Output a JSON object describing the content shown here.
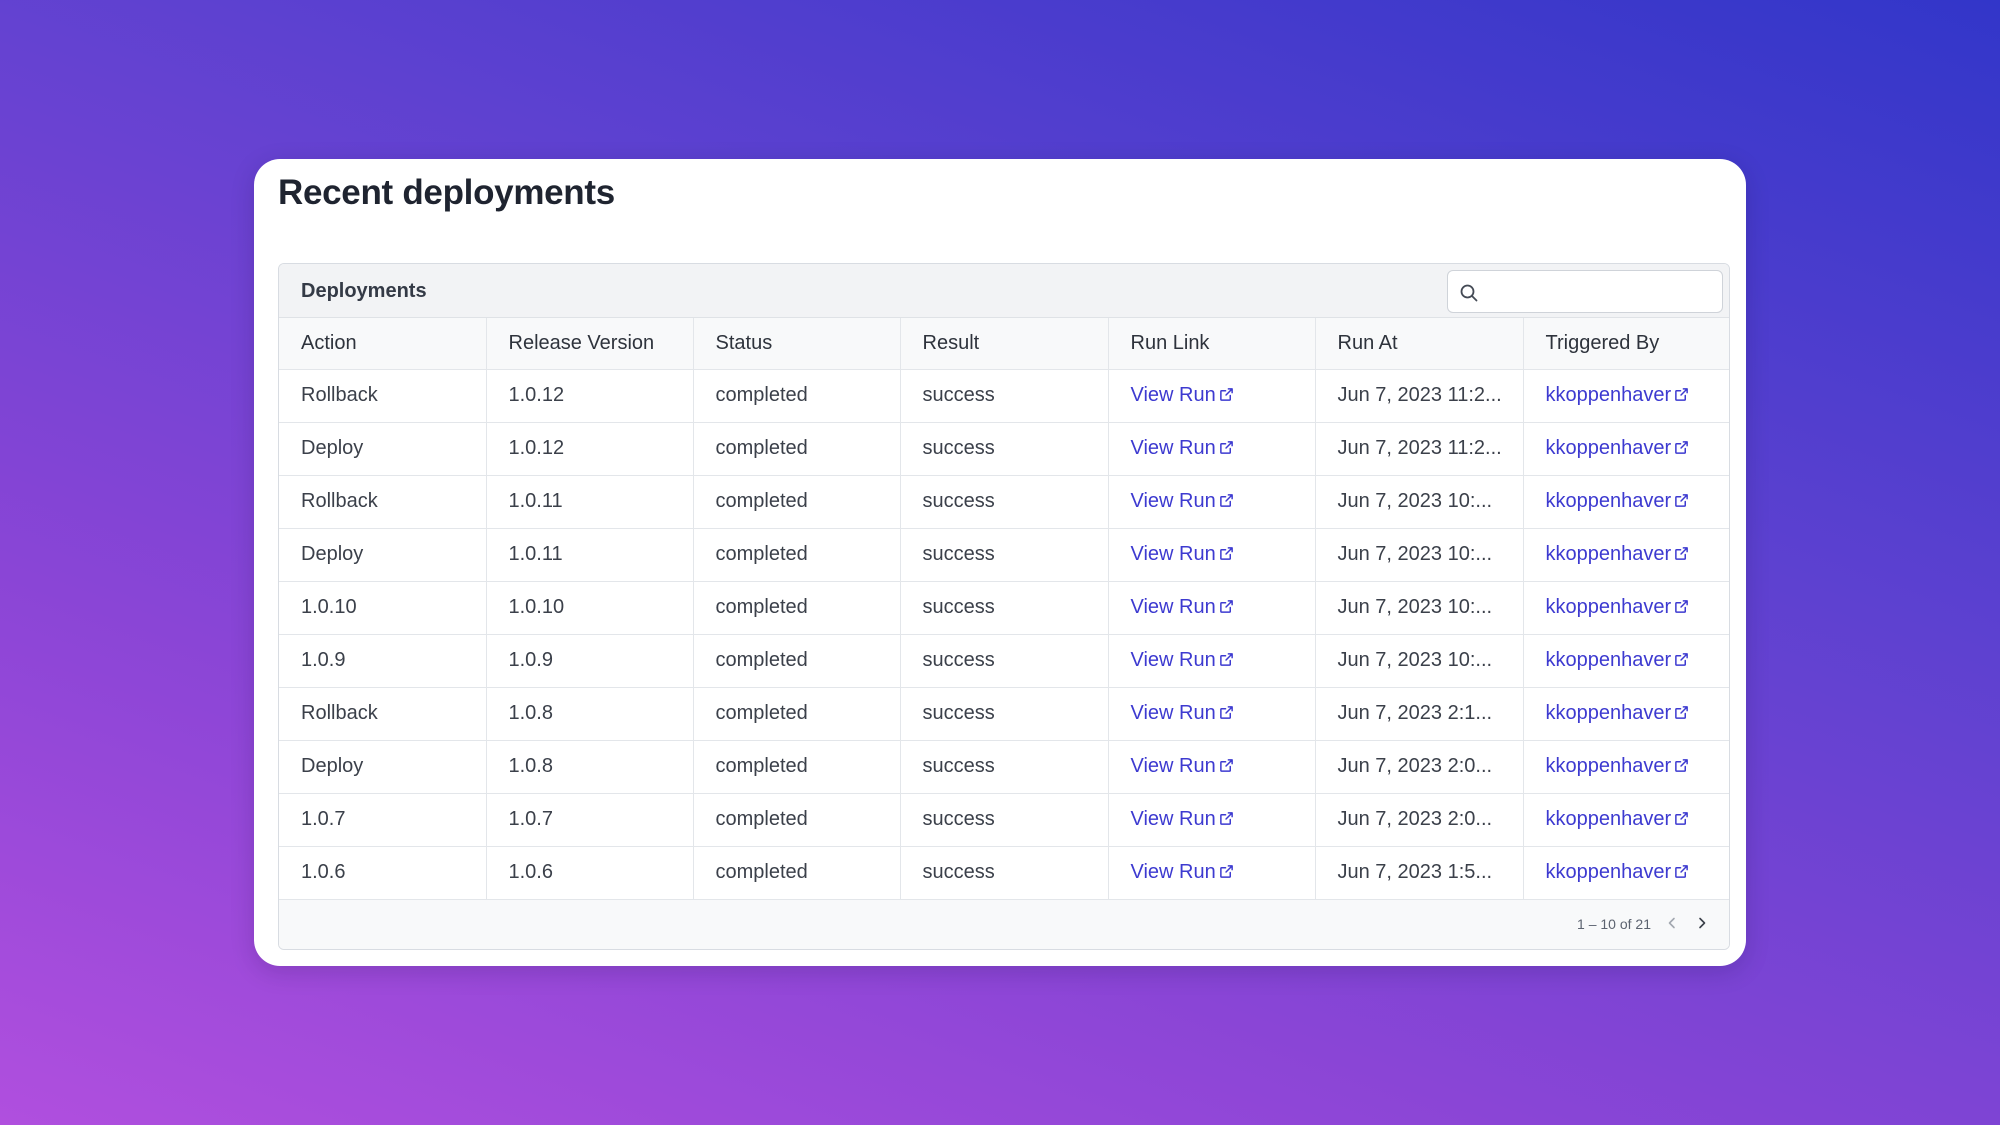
{
  "page": {
    "title": "Recent deployments"
  },
  "panel": {
    "title": "Deployments",
    "search": {
      "placeholder": "",
      "value": ""
    }
  },
  "table": {
    "columns": [
      "Action",
      "Release Version",
      "Status",
      "Result",
      "Run Link",
      "Run At",
      "Triggered By"
    ],
    "rows": [
      {
        "action": "Rollback",
        "release_version": "1.0.12",
        "status": "completed",
        "result": "success",
        "run_link": "View Run",
        "run_at": "Jun 7, 2023 11:2...",
        "triggered_by": "kkoppenhaver"
      },
      {
        "action": "Deploy",
        "release_version": "1.0.12",
        "status": "completed",
        "result": "success",
        "run_link": "View Run",
        "run_at": "Jun 7, 2023 11:2...",
        "triggered_by": "kkoppenhaver"
      },
      {
        "action": "Rollback",
        "release_version": "1.0.11",
        "status": "completed",
        "result": "success",
        "run_link": "View Run",
        "run_at": "Jun 7, 2023 10:...",
        "triggered_by": "kkoppenhaver"
      },
      {
        "action": "Deploy",
        "release_version": "1.0.11",
        "status": "completed",
        "result": "success",
        "run_link": "View Run",
        "run_at": "Jun 7, 2023 10:...",
        "triggered_by": "kkoppenhaver"
      },
      {
        "action": "1.0.10",
        "release_version": "1.0.10",
        "status": "completed",
        "result": "success",
        "run_link": "View Run",
        "run_at": "Jun 7, 2023 10:...",
        "triggered_by": "kkoppenhaver"
      },
      {
        "action": "1.0.9",
        "release_version": "1.0.9",
        "status": "completed",
        "result": "success",
        "run_link": "View Run",
        "run_at": "Jun 7, 2023 10:...",
        "triggered_by": "kkoppenhaver"
      },
      {
        "action": "Rollback",
        "release_version": "1.0.8",
        "status": "completed",
        "result": "success",
        "run_link": "View Run",
        "run_at": "Jun 7, 2023 2:1...",
        "triggered_by": "kkoppenhaver"
      },
      {
        "action": "Deploy",
        "release_version": "1.0.8",
        "status": "completed",
        "result": "success",
        "run_link": "View Run",
        "run_at": "Jun 7, 2023 2:0...",
        "triggered_by": "kkoppenhaver"
      },
      {
        "action": "1.0.7",
        "release_version": "1.0.7",
        "status": "completed",
        "result": "success",
        "run_link": "View Run",
        "run_at": "Jun 7, 2023 2:0...",
        "triggered_by": "kkoppenhaver"
      },
      {
        "action": "1.0.6",
        "release_version": "1.0.6",
        "status": "completed",
        "result": "success",
        "run_link": "View Run",
        "run_at": "Jun 7, 2023 1:5...",
        "triggered_by": "kkoppenhaver"
      }
    ]
  },
  "pagination": {
    "label": "1 – 10 of 21"
  },
  "icons": {
    "search": "search-icon",
    "external_link": "external-link-icon",
    "prev": "chevron-left-icon",
    "next": "chevron-right-icon"
  },
  "colors": {
    "link": "#3d3ad0",
    "header_bg": "#f2f3f5"
  }
}
